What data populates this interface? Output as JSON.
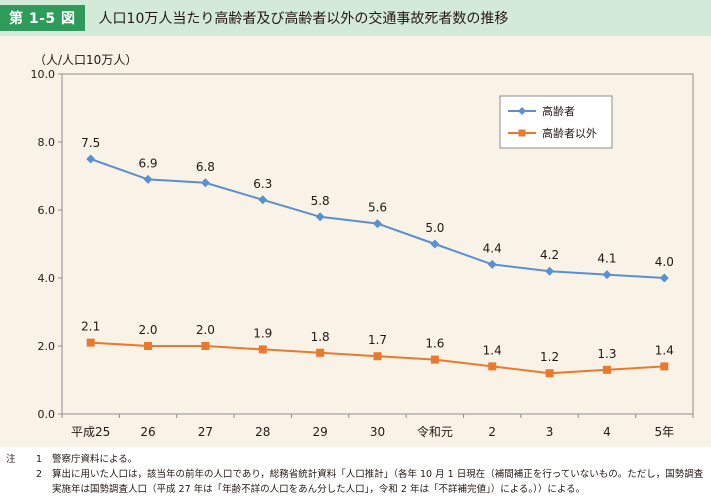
{
  "header": {
    "figure_number": "第 1-5 図",
    "title": "人口10万人当たり高齢者及び高齢者以外の交通事故死者数の推移"
  },
  "chart_data": {
    "type": "line",
    "ylabel": "（人/人口10万人）",
    "ylim": [
      0,
      10
    ],
    "yticks": [
      "0.0",
      "2.0",
      "4.0",
      "6.0",
      "8.0",
      "10.0"
    ],
    "ytick_values": [
      0,
      2,
      4,
      6,
      8,
      10
    ],
    "categories": [
      "平成25",
      "26",
      "27",
      "28",
      "29",
      "30",
      "令和元",
      "2",
      "3",
      "4",
      "5年"
    ],
    "series": [
      {
        "name": "高齢者",
        "color": "#5b8fcf",
        "marker": "diamond",
        "values": [
          7.5,
          6.9,
          6.8,
          6.3,
          5.8,
          5.6,
          5.0,
          4.4,
          4.2,
          4.1,
          4.0
        ],
        "labels": [
          "7.5",
          "6.9",
          "6.8",
          "6.3",
          "5.8",
          "5.6",
          "5.0",
          "4.4",
          "4.2",
          "4.1",
          "4.0"
        ]
      },
      {
        "name": "高齢者以外",
        "color": "#e8792f",
        "marker": "square",
        "values": [
          2.1,
          2.0,
          2.0,
          1.9,
          1.8,
          1.7,
          1.6,
          1.4,
          1.2,
          1.3,
          1.4
        ],
        "labels": [
          "2.1",
          "2.0",
          "2.0",
          "1.9",
          "1.8",
          "1.7",
          "1.6",
          "1.4",
          "1.2",
          "1.3",
          "1.4"
        ]
      }
    ],
    "legend_position": "top-right",
    "grid": false
  },
  "notes": {
    "lead": "注",
    "items": [
      {
        "num": "1",
        "text": "警察庁資料による。"
      },
      {
        "num": "2",
        "text": "算出に用いた人口は，該当年の前年の人口であり，総務省統計資料「人口推計」（各年 10 月 1 日現在（補間補正を行っていないもの。ただし，国勢調査実施年は国勢調査人口（平成 27 年は「年齢不詳の人口をあん分した人口」，令和 2 年は「不詳補完値」）による。））による。"
      }
    ]
  }
}
